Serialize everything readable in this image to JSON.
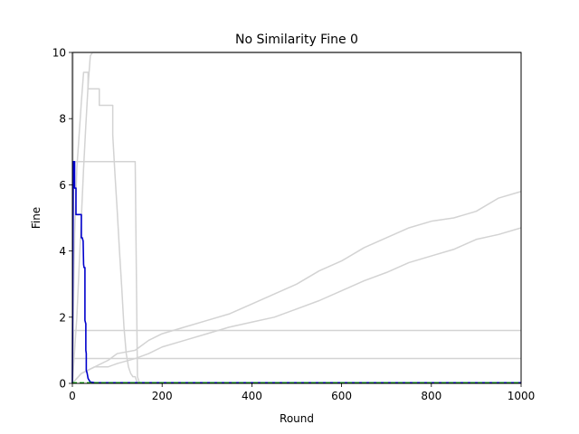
{
  "chart_data": {
    "type": "line",
    "title": "No Similarity Fine 0",
    "xlabel": "Round",
    "ylabel": "Fine",
    "xlim": [
      0,
      1000
    ],
    "ylim": [
      0,
      10
    ],
    "x_ticks": [
      0,
      200,
      400,
      600,
      800,
      1000
    ],
    "y_ticks": [
      0,
      2,
      4,
      6,
      8,
      10
    ],
    "grid": false,
    "legend": "none",
    "colors": {
      "background_lines": "#d3d3d3",
      "highlight_line": "#0000cc",
      "reference_line": "#00aa00"
    },
    "series": [
      {
        "role": "background",
        "x": [
          0,
          2,
          2,
          1000
        ],
        "y": [
          0,
          10,
          10,
          10
        ]
      },
      {
        "role": "background",
        "x": [
          0,
          3,
          3,
          1000
        ],
        "y": [
          0,
          1.6,
          1.6,
          1.6
        ]
      },
      {
        "role": "background",
        "x": [
          0,
          3,
          3,
          1000
        ],
        "y": [
          0,
          0.75,
          0.75,
          0.75
        ]
      },
      {
        "role": "background",
        "x": [
          0,
          3,
          3,
          140,
          140,
          145,
          145,
          150
        ],
        "y": [
          0,
          6.7,
          6.7,
          6.7,
          6.7,
          0.2,
          0.2,
          0
        ]
      },
      {
        "role": "background",
        "x": [
          0,
          5,
          10,
          15,
          20,
          25,
          25,
          35,
          35,
          60,
          60,
          90,
          90,
          95,
          100,
          105,
          110,
          115,
          120,
          125,
          130,
          135,
          140,
          145
        ],
        "y": [
          0,
          4.5,
          6.5,
          7.5,
          8.5,
          9.4,
          9.4,
          9.4,
          8.9,
          8.9,
          8.4,
          8.4,
          7.5,
          6.3,
          5.2,
          4.0,
          2.9,
          1.7,
          0.9,
          0.5,
          0.3,
          0.2,
          0.2,
          0
        ]
      },
      {
        "role": "background",
        "x": [
          0,
          10,
          15,
          20,
          25,
          30,
          35,
          40,
          45,
          1000
        ],
        "y": [
          0,
          2.0,
          3.5,
          5.0,
          6.5,
          7.8,
          9.0,
          9.9,
          10,
          10
        ]
      },
      {
        "role": "background",
        "x": [
          0,
          20,
          50,
          80,
          100,
          140,
          170,
          200,
          250,
          300,
          350,
          400,
          450,
          500,
          550,
          600,
          650,
          700,
          750,
          800,
          850,
          900,
          950,
          1000
        ],
        "y": [
          0,
          0.3,
          0.5,
          0.7,
          0.9,
          1.0,
          1.3,
          1.5,
          1.7,
          1.9,
          2.1,
          2.4,
          2.7,
          3.0,
          3.4,
          3.7,
          4.1,
          4.4,
          4.7,
          4.9,
          5.0,
          5.2,
          5.6,
          5.8
        ]
      },
      {
        "role": "background",
        "x": [
          0,
          20,
          50,
          80,
          100,
          140,
          170,
          200,
          250,
          300,
          350,
          400,
          450,
          500,
          550,
          600,
          650,
          700,
          750,
          800,
          850,
          900,
          950,
          1000
        ],
        "y": [
          0,
          0.3,
          0.5,
          0.5,
          0.6,
          0.75,
          0.9,
          1.1,
          1.3,
          1.5,
          1.7,
          1.85,
          2.0,
          2.25,
          2.5,
          2.8,
          3.1,
          3.35,
          3.65,
          3.85,
          4.05,
          4.35,
          4.5,
          4.7
        ]
      },
      {
        "role": "highlight",
        "x": [
          0,
          2,
          5,
          5,
          8,
          8,
          20,
          20,
          22,
          24,
          25,
          26,
          28,
          28,
          30,
          30,
          31,
          31,
          33,
          35,
          38,
          40,
          50,
          100,
          1000
        ],
        "y": [
          0,
          6.7,
          6.7,
          5.9,
          5.9,
          5.1,
          5.1,
          4.4,
          4.4,
          4.3,
          3.6,
          3.5,
          3.5,
          1.9,
          1.8,
          1.0,
          0.9,
          0.4,
          0.3,
          0.15,
          0.08,
          0.04,
          0.02,
          0.02,
          0.02
        ]
      },
      {
        "role": "reference",
        "dashed": true,
        "x": [
          0,
          1000
        ],
        "y": [
          0.02,
          0.02
        ]
      }
    ]
  }
}
